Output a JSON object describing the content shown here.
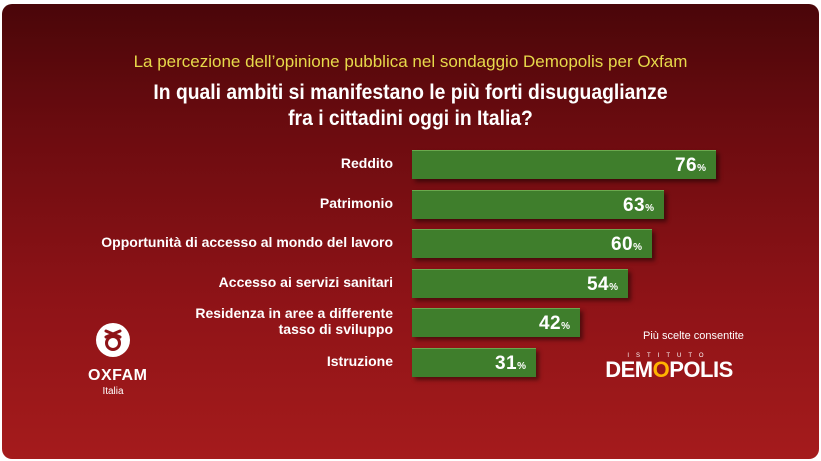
{
  "subtitle": "La percezione dell’opinione pubblica nel sondaggio Demopolis per Oxfam",
  "title_line1": "In quali ambiti si manifestano le più forti disuguaglianze",
  "title_line2": "fra i cittadini oggi in Italia?",
  "note": "Più scelte consentite",
  "oxfam": {
    "name": "OXFAM",
    "sub": "Italia"
  },
  "demopolis": {
    "istituto": "ISTITUTO",
    "word_a": "DEM",
    "word_o": "O",
    "word_b": "POLIS"
  },
  "colors": {
    "bar": "#3f7e2c",
    "subtitle": "#e7d94a",
    "background": "#8e1317"
  },
  "chart_data": {
    "type": "bar",
    "orientation": "horizontal",
    "categories": [
      "Reddito",
      "Patrimonio",
      "Opportunità di accesso al mondo del lavoro",
      "Accesso ai servizi sanitari",
      "Residenza in aree a differente tasso di sviluppo",
      "Istruzione"
    ],
    "category_lines": [
      [
        "Reddito"
      ],
      [
        "Patrimonio"
      ],
      [
        "Opportunità di accesso al mondo del lavoro"
      ],
      [
        "Accesso ai servizi sanitari"
      ],
      [
        "Residenza in aree a differente",
        "tasso di sviluppo"
      ],
      [
        "Istruzione"
      ]
    ],
    "values": [
      76,
      63,
      60,
      54,
      42,
      31
    ],
    "value_labels": [
      "76",
      "63",
      "60",
      "54",
      "42",
      "31"
    ],
    "unit": "%",
    "xlim": [
      0,
      100
    ]
  }
}
